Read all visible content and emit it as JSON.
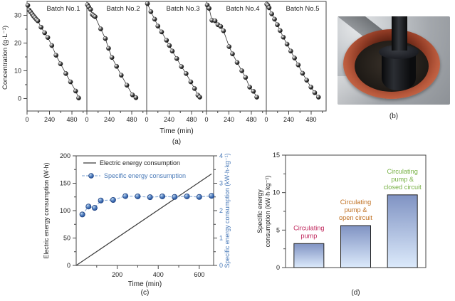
{
  "figure": {
    "caption_a": "(a)",
    "caption_b": "(b)",
    "caption_c": "(c)",
    "caption_d": "(d)"
  },
  "photo": {
    "colors": {
      "metal": "#a8acb0",
      "gasket_red": "#b8593c",
      "electrode_black": "#101114"
    }
  },
  "chart_data": [
    {
      "id": "batch-concentration",
      "type": "scatter",
      "xlabel": "Time (min)",
      "ylabel": "Concentration (g·L⁻¹)",
      "xlim": [
        0,
        640
      ],
      "ylim": [
        -4.5,
        35
      ],
      "xticks": [
        0,
        240,
        480
      ],
      "xticks_minor": [
        120,
        360,
        600
      ],
      "yticks": [
        0,
        10,
        20,
        30
      ],
      "yticks_minor": [
        5,
        15,
        25
      ],
      "marker_color": "black-sphere",
      "series": [
        {
          "name": "Batch No.1",
          "points": [
            [
              8,
              33.6
            ],
            [
              22,
              31.9
            ],
            [
              38,
              31.2
            ],
            [
              55,
              30.4
            ],
            [
              70,
              29.7
            ],
            [
              85,
              29.1
            ],
            [
              100,
              28.5
            ],
            [
              115,
              28.0
            ],
            [
              150,
              25.7
            ],
            [
              188,
              23.7
            ],
            [
              222,
              22.0
            ],
            [
              265,
              19.1
            ],
            [
              310,
              15.6
            ],
            [
              358,
              12.5
            ],
            [
              415,
              9.0
            ],
            [
              465,
              6.0
            ],
            [
              520,
              2.7
            ],
            [
              552,
              0.2
            ]
          ]
        },
        {
          "name": "Batch No.2",
          "points": [
            [
              6,
              33.8
            ],
            [
              20,
              33.0
            ],
            [
              40,
              32.1
            ],
            [
              58,
              30.3
            ],
            [
              72,
              29.9
            ],
            [
              88,
              29.5
            ],
            [
              148,
              25.1
            ],
            [
              198,
              21.6
            ],
            [
              232,
              18.1
            ],
            [
              268,
              14.8
            ],
            [
              318,
              11.6
            ],
            [
              368,
              8.4
            ],
            [
              428,
              4.8
            ],
            [
              488,
              1.3
            ],
            [
              525,
              0.3
            ]
          ]
        },
        {
          "name": "Batch No.3",
          "points": [
            [
              8,
              34.2
            ],
            [
              45,
              31.3
            ],
            [
              85,
              28.6
            ],
            [
              120,
              26.1
            ],
            [
              160,
              24.0
            ],
            [
              212,
              21.0
            ],
            [
              243,
              19.1
            ],
            [
              274,
              17.1
            ],
            [
              322,
              14.4
            ],
            [
              372,
              11.5
            ],
            [
              422,
              9.0
            ],
            [
              472,
              6.0
            ],
            [
              512,
              3.6
            ],
            [
              548,
              1.2
            ],
            [
              568,
              0.5
            ]
          ]
        },
        {
          "name": "Batch No.4",
          "points": [
            [
              8,
              33.7
            ],
            [
              28,
              32.5
            ],
            [
              58,
              28.2
            ],
            [
              92,
              28.0
            ],
            [
              122,
              26.6
            ],
            [
              152,
              26.0
            ],
            [
              182,
              24.4
            ],
            [
              242,
              18.7
            ],
            [
              278,
              16.1
            ],
            [
              328,
              13.0
            ],
            [
              378,
              10.0
            ],
            [
              418,
              7.6
            ],
            [
              462,
              4.1
            ],
            [
              502,
              2.6
            ],
            [
              538,
              0.5
            ]
          ]
        },
        {
          "name": "Batch No.5",
          "points": [
            [
              5,
              34.0
            ],
            [
              16,
              33.6
            ],
            [
              30,
              32.7
            ],
            [
              58,
              30.5
            ],
            [
              88,
              28.6
            ],
            [
              118,
              26.6
            ],
            [
              148,
              24.5
            ],
            [
              182,
              22.1
            ],
            [
              222,
              19.6
            ],
            [
              262,
              17.1
            ],
            [
              302,
              14.6
            ],
            [
              342,
              12.1
            ],
            [
              388,
              9.1
            ],
            [
              432,
              6.6
            ],
            [
              478,
              4.1
            ],
            [
              518,
              2.1
            ],
            [
              558,
              0.5
            ]
          ]
        }
      ]
    },
    {
      "id": "energy-consumption",
      "type": "line",
      "xlabel": "Time (min)",
      "ylabel_left": "Electric energy consumption (W·h)",
      "ylabel_right": "Specific energy consumption (kW·h·kg⁻¹)",
      "xlim": [
        0,
        670
      ],
      "xticks": [
        200,
        400,
        600
      ],
      "xticks_minor": [
        100,
        300,
        500
      ],
      "ylim_left": [
        0,
        200
      ],
      "yticks_left": [
        0,
        50,
        100,
        150,
        200
      ],
      "yticks_minor_left": [
        25,
        75,
        125,
        175
      ],
      "ylim_right": [
        0,
        4
      ],
      "yticks_right": [
        0,
        1,
        2,
        3,
        4
      ],
      "yticks_minor_right": [
        0.5,
        1.5,
        2.5,
        3.5
      ],
      "legend": [
        "Electric energy consumption",
        "Specific energy consumption"
      ],
      "colors": {
        "black_line": "#3a3a3a",
        "blue": "#4a7ab8",
        "blue_dash": "#8fafd8",
        "blue_marker_edge": "#1d4080"
      },
      "series": [
        {
          "name": "Electric energy consumption",
          "axis": "left",
          "style": "solid",
          "points": [
            [
              0,
              0
            ],
            [
              660,
              167
            ]
          ]
        },
        {
          "name": "Specific energy consumption",
          "axis": "right",
          "style": "dashed-marker",
          "points": [
            [
              30,
              1.86
            ],
            [
              60,
              2.15
            ],
            [
              90,
              2.1
            ],
            [
              120,
              2.37
            ],
            [
              180,
              2.39
            ],
            [
              240,
              2.53
            ],
            [
              300,
              2.52
            ],
            [
              360,
              2.49
            ],
            [
              420,
              2.52
            ],
            [
              480,
              2.5
            ],
            [
              540,
              2.52
            ],
            [
              600,
              2.5
            ],
            [
              660,
              2.54
            ]
          ]
        }
      ]
    },
    {
      "id": "pump-comparison",
      "type": "bar",
      "ylabel_lines": [
        "Specific energy",
        "consumption (kW·h·kg⁻¹)"
      ],
      "ylim": [
        0,
        15
      ],
      "yticks": [
        0,
        5,
        10,
        15
      ],
      "yticks_minor": [
        2.5,
        7.5,
        12.5
      ],
      "bar_fill_top": "#8093c3",
      "bar_fill_bottom": "#dceafb",
      "bar_border": "#222222",
      "bars": [
        {
          "label_lines": [
            "Circulating",
            "pump"
          ],
          "value": 3.2,
          "label_color": "#c0265c"
        },
        {
          "label_lines": [
            "Circulating",
            "pump &",
            "open circuit"
          ],
          "value": 5.6,
          "label_color": "#c07022"
        },
        {
          "label_lines": [
            "Circulating",
            "pump &",
            "closed circuit"
          ],
          "value": 9.7,
          "label_color": "#76b043"
        }
      ]
    }
  ]
}
